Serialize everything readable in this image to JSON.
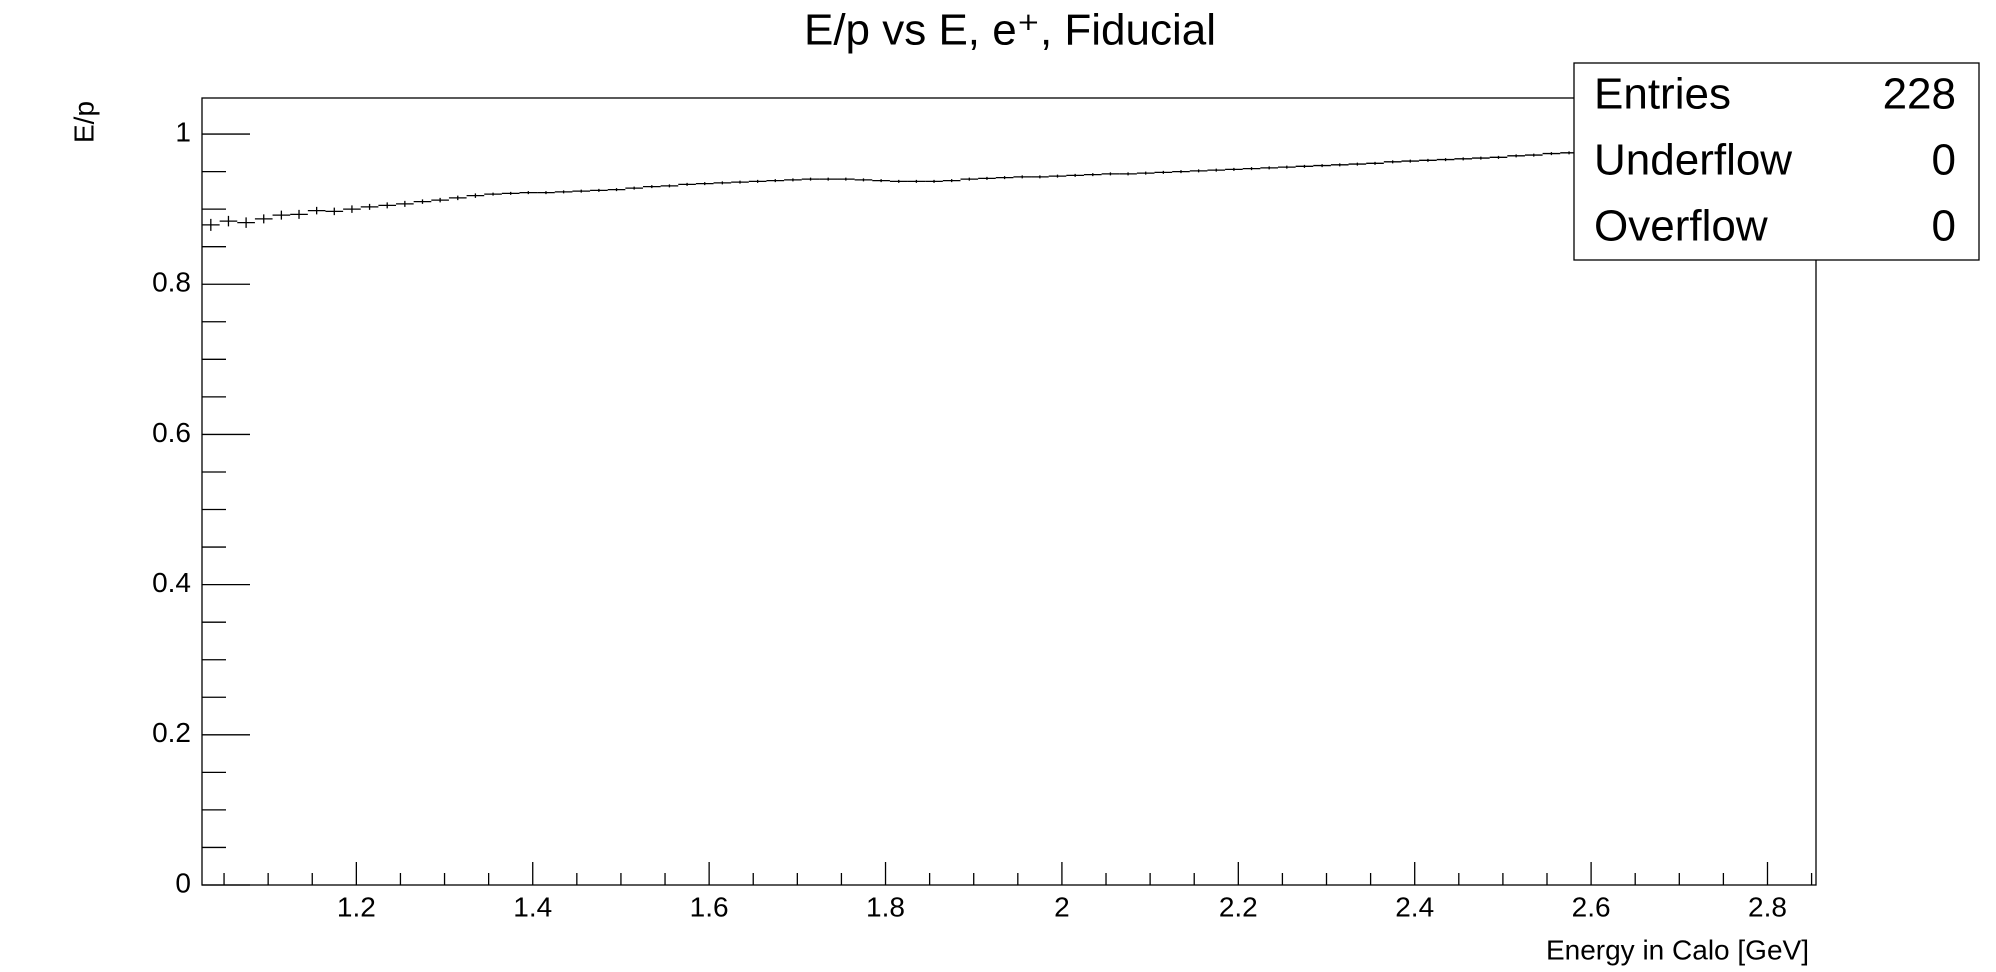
{
  "chart_data": {
    "type": "profile",
    "title": "E/p vs E, e⁺, Fiducial",
    "xlabel": "Energy in Calo [GeV]",
    "ylabel": "E/p",
    "xlim": [
      1.025,
      2.855
    ],
    "ylim": [
      0,
      1.048
    ],
    "xticks": [
      1.2,
      1.4,
      1.6,
      1.8,
      2,
      2.2,
      2.4,
      2.6,
      2.8
    ],
    "xminorticks": [
      1.05,
      1.1,
      1.15,
      1.25,
      1.3,
      1.35,
      1.45,
      1.5,
      1.55,
      1.65,
      1.7,
      1.75,
      1.85,
      1.9,
      1.95,
      2.05,
      2.1,
      2.15,
      2.25,
      2.3,
      2.35,
      2.45,
      2.5,
      2.55,
      2.65,
      2.7,
      2.75,
      2.85
    ],
    "yticks": [
      0,
      0.2,
      0.4,
      0.6,
      0.8,
      1
    ],
    "yminorticks": [
      0.05,
      0.1,
      0.15,
      0.25,
      0.3,
      0.35,
      0.45,
      0.5,
      0.55,
      0.65,
      0.7,
      0.75,
      0.85,
      0.9,
      0.95
    ],
    "color": "#000000",
    "x": [
      1.035,
      1.055,
      1.075,
      1.095,
      1.115,
      1.135,
      1.155,
      1.175,
      1.195,
      1.215,
      1.235,
      1.255,
      1.275,
      1.295,
      1.315,
      1.335,
      1.355,
      1.375,
      1.395,
      1.415,
      1.435,
      1.455,
      1.475,
      1.495,
      1.515,
      1.535,
      1.555,
      1.575,
      1.595,
      1.615,
      1.635,
      1.655,
      1.675,
      1.695,
      1.715,
      1.735,
      1.755,
      1.775,
      1.795,
      1.815,
      1.835,
      1.855,
      1.875,
      1.895,
      1.915,
      1.935,
      1.955,
      1.975,
      1.995,
      2.015,
      2.035,
      2.055,
      2.075,
      2.095,
      2.115,
      2.135,
      2.155,
      2.175,
      2.195,
      2.215,
      2.235,
      2.255,
      2.275,
      2.295,
      2.315,
      2.335,
      2.355,
      2.375,
      2.395,
      2.415,
      2.435,
      2.455,
      2.475,
      2.495,
      2.515,
      2.535,
      2.555,
      2.575,
      2.595,
      2.615
    ],
    "values": [
      0.879,
      0.884,
      0.882,
      0.887,
      0.892,
      0.893,
      0.898,
      0.897,
      0.9,
      0.903,
      0.905,
      0.907,
      0.91,
      0.912,
      0.915,
      0.918,
      0.92,
      0.921,
      0.922,
      0.922,
      0.923,
      0.924,
      0.925,
      0.926,
      0.928,
      0.93,
      0.931,
      0.933,
      0.934,
      0.935,
      0.936,
      0.937,
      0.938,
      0.939,
      0.94,
      0.94,
      0.94,
      0.939,
      0.938,
      0.937,
      0.937,
      0.937,
      0.938,
      0.94,
      0.941,
      0.942,
      0.943,
      0.943,
      0.944,
      0.945,
      0.946,
      0.947,
      0.947,
      0.948,
      0.949,
      0.95,
      0.951,
      0.952,
      0.953,
      0.954,
      0.955,
      0.956,
      0.957,
      0.958,
      0.959,
      0.96,
      0.961,
      0.963,
      0.964,
      0.965,
      0.966,
      0.967,
      0.968,
      0.969,
      0.971,
      0.972,
      0.974,
      0.975,
      0.977,
      0.978
    ],
    "errors": [
      0.008,
      0.007,
      0.007,
      0.006,
      0.006,
      0.006,
      0.005,
      0.005,
      0.005,
      0.004,
      0.004,
      0.004,
      0.003,
      0.003,
      0.003,
      0.003,
      0.002,
      0.002,
      0.002,
      0.002,
      0.002,
      0.002,
      0.002,
      0.002,
      0.002,
      0.002,
      0.002,
      0.002,
      0.002,
      0.002,
      0.002,
      0.002,
      0.002,
      0.002,
      0.002,
      0.002,
      0.002,
      0.002,
      0.002,
      0.002,
      0.002,
      0.002,
      0.002,
      0.002,
      0.002,
      0.002,
      0.002,
      0.002,
      0.002,
      0.002,
      0.002,
      0.002,
      0.002,
      0.002,
      0.002,
      0.002,
      0.002,
      0.002,
      0.002,
      0.002,
      0.002,
      0.002,
      0.002,
      0.002,
      0.002,
      0.002,
      0.002,
      0.002,
      0.002,
      0.002,
      0.002,
      0.002,
      0.002,
      0.002,
      0.002,
      0.002,
      0.002,
      0.002,
      0.002,
      0.002
    ],
    "stats": [
      {
        "label": "Entries",
        "value": 228
      },
      {
        "label": "Underflow",
        "value": 0
      },
      {
        "label": "Overflow",
        "value": 0
      }
    ]
  }
}
